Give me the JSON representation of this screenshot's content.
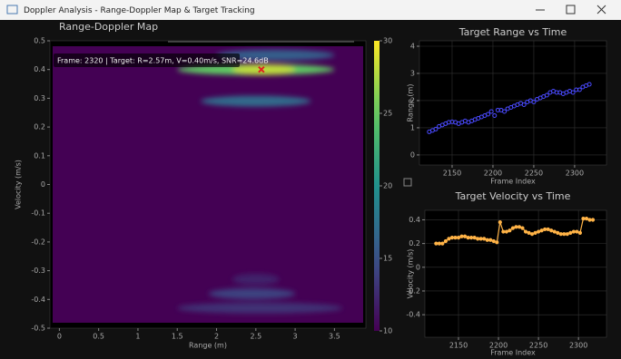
{
  "window": {
    "title": "Doppler Analysis - Range-Doppler Map & Target Tracking"
  },
  "chart_data": [
    {
      "type": "heatmap",
      "title": "Range-Doppler Map",
      "xlabel": "Range (m)",
      "ylabel": "Velocity (m/s)",
      "xlim": [
        -0.12,
        3.9
      ],
      "ylim": [
        -0.5,
        0.5
      ],
      "xticks": [
        0,
        0.5,
        1,
        1.5,
        2,
        2.5,
        3,
        3.5
      ],
      "yticks": [
        -0.5,
        -0.4,
        -0.3,
        -0.2,
        -0.1,
        0,
        0.1,
        0.2,
        0.3,
        0.4,
        0.5
      ],
      "colormap": "viridis",
      "clim": [
        10,
        30
      ],
      "cticks": [
        10,
        15,
        20,
        25,
        30
      ],
      "background_value": 10,
      "blobs": [
        {
          "range": [
            2.0,
            3.5
          ],
          "velocity": 0.45,
          "value": 16
        },
        {
          "range": [
            1.5,
            3.5
          ],
          "velocity": 0.4,
          "value": 25
        },
        {
          "range": [
            2.2,
            3.0
          ],
          "velocity": 0.4,
          "value": 28
        },
        {
          "range": [
            1.8,
            3.2
          ],
          "velocity": 0.29,
          "value": 17
        },
        {
          "range": [
            2.2,
            2.8
          ],
          "velocity": -0.33,
          "value": 12
        },
        {
          "range": [
            1.9,
            3.0
          ],
          "velocity": -0.38,
          "value": 14
        },
        {
          "range": [
            1.5,
            3.6
          ],
          "velocity": -0.43,
          "value": 13
        }
      ],
      "annotation": "Frame: 2320 | Target: R=2.57m, V=0.40m/s, SNR=24.6dB",
      "marker": {
        "x": 2.57,
        "y": 0.4,
        "color": "#e02020"
      }
    },
    {
      "type": "scatter",
      "title": "Target Range vs Time",
      "xlabel": "Frame Index",
      "ylabel": "Range (m)",
      "color": "#4a4aff",
      "grid": true,
      "xlim": [
        2110,
        2339
      ],
      "ylim": [
        -0.37,
        4.2
      ],
      "xticks": [
        2150,
        2200,
        2250,
        2300
      ],
      "yticks": [
        0,
        1,
        2,
        3,
        4
      ],
      "x": [
        2122,
        2126,
        2130,
        2134,
        2138,
        2142,
        2146,
        2150,
        2154,
        2158,
        2162,
        2166,
        2170,
        2174,
        2178,
        2182,
        2186,
        2190,
        2194,
        2198,
        2202,
        2206,
        2210,
        2214,
        2218,
        2222,
        2226,
        2230,
        2234,
        2238,
        2242,
        2246,
        2250,
        2254,
        2258,
        2262,
        2266,
        2270,
        2274,
        2278,
        2282,
        2286,
        2290,
        2294,
        2298,
        2302,
        2306,
        2310,
        2314,
        2318
      ],
      "values": [
        0.85,
        0.9,
        0.95,
        1.05,
        1.1,
        1.15,
        1.2,
        1.22,
        1.2,
        1.15,
        1.2,
        1.25,
        1.2,
        1.25,
        1.3,
        1.35,
        1.4,
        1.45,
        1.5,
        1.6,
        1.45,
        1.65,
        1.65,
        1.6,
        1.7,
        1.75,
        1.8,
        1.85,
        1.9,
        1.85,
        1.95,
        2.0,
        1.95,
        2.05,
        2.1,
        2.15,
        2.2,
        2.3,
        2.35,
        2.3,
        2.3,
        2.25,
        2.3,
        2.35,
        2.3,
        2.4,
        2.4,
        2.5,
        2.55,
        2.6
      ]
    },
    {
      "type": "line",
      "title": "Target Velocity vs Time",
      "xlabel": "Frame Index",
      "ylabel": "Velocity (m/s)",
      "color": "#ffb347",
      "grid": true,
      "xlim": [
        2108,
        2335
      ],
      "ylim": [
        -0.59,
        0.48
      ],
      "xticks": [
        2150,
        2200,
        2250,
        2300
      ],
      "yticks": [
        -0.4,
        -0.2,
        0,
        0.2,
        0.4
      ],
      "x": [
        2122,
        2126,
        2130,
        2134,
        2138,
        2142,
        2146,
        2150,
        2154,
        2158,
        2162,
        2166,
        2170,
        2174,
        2178,
        2182,
        2186,
        2190,
        2194,
        2198,
        2202,
        2206,
        2210,
        2214,
        2218,
        2222,
        2226,
        2230,
        2234,
        2238,
        2242,
        2246,
        2250,
        2254,
        2258,
        2262,
        2266,
        2270,
        2274,
        2278,
        2282,
        2286,
        2290,
        2294,
        2298,
        2302,
        2306,
        2310,
        2314,
        2318
      ],
      "values": [
        0.2,
        0.2,
        0.2,
        0.22,
        0.24,
        0.25,
        0.25,
        0.25,
        0.26,
        0.26,
        0.25,
        0.25,
        0.25,
        0.24,
        0.24,
        0.24,
        0.23,
        0.23,
        0.22,
        0.21,
        0.38,
        0.3,
        0.3,
        0.31,
        0.33,
        0.34,
        0.34,
        0.33,
        0.3,
        0.29,
        0.28,
        0.29,
        0.3,
        0.31,
        0.32,
        0.32,
        0.31,
        0.3,
        0.29,
        0.28,
        0.28,
        0.28,
        0.29,
        0.3,
        0.3,
        0.29,
        0.41,
        0.41,
        0.4,
        0.4
      ]
    }
  ]
}
